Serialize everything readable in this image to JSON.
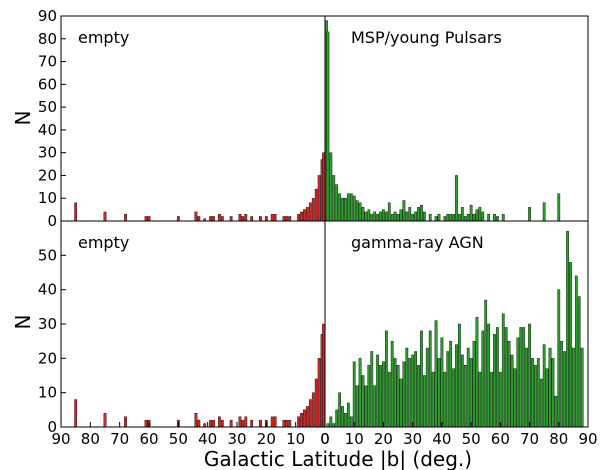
{
  "figure": {
    "xlabel": "Galactic Latitude |b| (deg.)",
    "ylabel": "N"
  },
  "chart_data": [
    {
      "type": "bar",
      "panel": "top-left",
      "annotation": "empty",
      "xlim": [
        90,
        0
      ],
      "ylim": [
        0,
        90
      ],
      "xticks": [],
      "yticks": [
        0,
        10,
        20,
        30,
        40,
        50,
        60,
        70,
        80,
        90
      ],
      "bar_width": 0.8,
      "color": "#d62728",
      "x": [
        85,
        75,
        68,
        61,
        60,
        50,
        44,
        43,
        41,
        39,
        38,
        36,
        35,
        32,
        29,
        28,
        27,
        25,
        22,
        20,
        18,
        17,
        14,
        13,
        12,
        9,
        8,
        7,
        6,
        5,
        4,
        3,
        2,
        1,
        0.5
      ],
      "values": [
        8,
        4,
        3,
        2,
        2,
        2,
        4,
        2,
        1,
        2,
        2,
        3,
        2,
        2,
        3,
        2,
        3,
        2,
        2,
        2,
        3,
        3,
        2,
        2,
        2,
        3,
        4,
        5,
        6,
        8,
        10,
        14,
        20,
        27,
        30
      ]
    },
    {
      "type": "bar",
      "panel": "top-right",
      "annotation": "MSP/young Pulsars",
      "xlim": [
        0,
        90
      ],
      "ylim": [
        0,
        90
      ],
      "xticks": [],
      "yticks": [],
      "bar_width": 0.8,
      "color": "#2ca02c",
      "x": [
        0.5,
        1,
        2,
        3,
        4,
        5,
        6,
        7,
        8,
        9,
        10,
        11,
        12,
        13,
        14,
        15,
        16,
        17,
        18,
        19,
        20,
        21,
        22,
        23,
        24,
        25,
        26,
        27,
        28,
        29,
        30,
        31,
        32,
        33,
        34,
        35,
        36,
        37,
        38,
        39,
        40,
        41,
        42,
        43,
        44,
        45,
        46,
        47,
        48,
        49,
        50,
        51,
        52,
        53,
        54,
        55,
        56,
        57,
        58,
        59,
        60,
        61,
        62,
        63,
        64,
        65,
        66,
        67,
        68,
        69,
        70,
        71,
        72,
        73,
        74,
        75,
        76,
        77,
        78,
        79,
        80
      ],
      "values": [
        88,
        83,
        30,
        20,
        16,
        12,
        10,
        10,
        12,
        12,
        11,
        9,
        8,
        6,
        4,
        5,
        3,
        4,
        3,
        4,
        5,
        4,
        8,
        3,
        4,
        3,
        5,
        9,
        4,
        6,
        3,
        4,
        6,
        7,
        4,
        0,
        3,
        0,
        2,
        3,
        0,
        2,
        3,
        3,
        3,
        20,
        3,
        6,
        2,
        3,
        7,
        3,
        5,
        6,
        4,
        0,
        3,
        0,
        3,
        2,
        0,
        3,
        0,
        0,
        0,
        0,
        0,
        0,
        0,
        0,
        6,
        0,
        0,
        0,
        0,
        8,
        0,
        0,
        0,
        0,
        12
      ]
    },
    {
      "type": "bar",
      "panel": "bottom-left",
      "annotation": "empty",
      "xlim": [
        90,
        0
      ],
      "ylim": [
        0,
        60
      ],
      "xticks": [
        90,
        80,
        70,
        60,
        50,
        40,
        30,
        20,
        10,
        0
      ],
      "yticks": [
        0,
        10,
        20,
        30,
        40,
        50
      ],
      "bar_width": 0.8,
      "color": "#d62728",
      "x": [
        85,
        75,
        68,
        61,
        60,
        50,
        44,
        43,
        41,
        39,
        38,
        36,
        35,
        32,
        29,
        28,
        27,
        25,
        22,
        20,
        18,
        17,
        14,
        13,
        12,
        9,
        8,
        7,
        6,
        5,
        4,
        3,
        2,
        1,
        0.5
      ],
      "values": [
        8,
        4,
        3,
        2,
        2,
        2,
        4,
        2,
        1,
        2,
        2,
        3,
        2,
        2,
        3,
        2,
        3,
        2,
        2,
        2,
        3,
        3,
        2,
        2,
        2,
        3,
        4,
        5,
        6,
        8,
        10,
        14,
        20,
        27,
        30
      ]
    },
    {
      "type": "bar",
      "panel": "bottom-right",
      "annotation": "gamma-ray AGN",
      "xlim": [
        0,
        90
      ],
      "ylim": [
        0,
        60
      ],
      "xticks": [
        0,
        10,
        20,
        30,
        40,
        50,
        60,
        70,
        80,
        90
      ],
      "yticks": [],
      "bar_width": 0.8,
      "color": "#2ca02c",
      "x": [
        1,
        2,
        3,
        4,
        5,
        6,
        7,
        8,
        9,
        10,
        11,
        12,
        13,
        14,
        15,
        16,
        17,
        18,
        19,
        20,
        21,
        22,
        23,
        24,
        25,
        26,
        27,
        28,
        29,
        30,
        31,
        32,
        33,
        34,
        35,
        36,
        37,
        38,
        39,
        40,
        41,
        42,
        43,
        44,
        45,
        46,
        47,
        48,
        49,
        50,
        51,
        52,
        53,
        54,
        55,
        56,
        57,
        58,
        59,
        60,
        61,
        62,
        63,
        64,
        65,
        66,
        67,
        68,
        69,
        70,
        71,
        72,
        73,
        74,
        75,
        76,
        77,
        78,
        79,
        80,
        81,
        82,
        83,
        84,
        85,
        86,
        87,
        88
      ],
      "values": [
        1,
        3,
        1,
        5,
        10,
        6,
        4,
        7,
        3,
        19,
        12,
        20,
        15,
        12,
        18,
        22,
        12,
        21,
        18,
        19,
        28,
        16,
        25,
        20,
        18,
        14,
        19,
        23,
        20,
        21,
        22,
        18,
        28,
        15,
        23,
        28,
        16,
        31,
        20,
        26,
        16,
        22,
        25,
        17,
        24,
        30,
        21,
        18,
        23,
        20,
        25,
        32,
        16,
        28,
        37,
        30,
        16,
        27,
        29,
        16,
        33,
        29,
        25,
        21,
        17,
        26,
        29,
        29,
        23,
        30,
        20,
        18,
        20,
        14,
        24,
        17,
        23,
        20,
        9,
        40,
        25,
        22,
        57,
        48,
        23,
        44,
        38,
        23
      ]
    }
  ]
}
